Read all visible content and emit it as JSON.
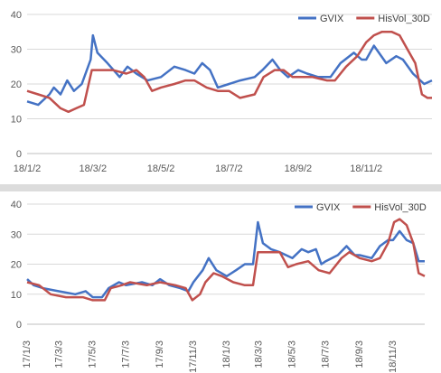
{
  "chart_data": [
    {
      "type": "line",
      "title": "",
      "xlabel": "",
      "ylabel": "",
      "ylim": [
        0,
        40
      ],
      "yticks": [
        0,
        10,
        20,
        30,
        40
      ],
      "grid": "horizontal",
      "legend": "top-right",
      "xlim": [
        "2018-01-02",
        "2018-12-31"
      ],
      "xtick_labels": [
        "18/1/2",
        "18/3/2",
        "18/5/2",
        "18/7/2",
        "18/9/2",
        "18/11/2"
      ],
      "xtick_dates": [
        "2018-01-02",
        "2018-03-02",
        "2018-05-02",
        "2018-07-02",
        "2018-09-02",
        "2018-11-02"
      ],
      "series": [
        {
          "name": "GVIX",
          "color": "#4472c4",
          "points": [
            [
              "2018-01-02",
              15
            ],
            [
              "2018-01-12",
              14
            ],
            [
              "2018-01-22",
              17
            ],
            [
              "2018-01-26",
              19
            ],
            [
              "2018-02-01",
              17
            ],
            [
              "2018-02-07",
              21
            ],
            [
              "2018-02-13",
              18
            ],
            [
              "2018-02-20",
              20
            ],
            [
              "2018-02-28",
              27
            ],
            [
              "2018-03-02",
              34
            ],
            [
              "2018-03-06",
              29
            ],
            [
              "2018-03-15",
              26
            ],
            [
              "2018-03-26",
              22
            ],
            [
              "2018-04-02",
              25
            ],
            [
              "2018-04-10",
              23
            ],
            [
              "2018-04-20",
              21
            ],
            [
              "2018-05-02",
              22
            ],
            [
              "2018-05-14",
              25
            ],
            [
              "2018-05-24",
              24
            ],
            [
              "2018-06-01",
              23
            ],
            [
              "2018-06-08",
              26
            ],
            [
              "2018-06-15",
              24
            ],
            [
              "2018-06-22",
              19
            ],
            [
              "2018-07-02",
              20
            ],
            [
              "2018-07-12",
              21
            ],
            [
              "2018-07-25",
              22
            ],
            [
              "2018-08-01",
              24
            ],
            [
              "2018-08-10",
              27
            ],
            [
              "2018-08-17",
              24
            ],
            [
              "2018-08-24",
              22
            ],
            [
              "2018-09-02",
              24
            ],
            [
              "2018-09-10",
              23
            ],
            [
              "2018-09-20",
              22
            ],
            [
              "2018-10-01",
              22
            ],
            [
              "2018-10-10",
              26
            ],
            [
              "2018-10-22",
              29
            ],
            [
              "2018-10-29",
              27
            ],
            [
              "2018-11-02",
              27
            ],
            [
              "2018-11-09",
              31
            ],
            [
              "2018-11-20",
              26
            ],
            [
              "2018-11-29",
              28
            ],
            [
              "2018-12-05",
              27
            ],
            [
              "2018-12-14",
              23
            ],
            [
              "2018-12-24",
              20
            ],
            [
              "2018-12-31",
              21
            ]
          ]
        },
        {
          "name": "HisVol_30D",
          "color": "#c0504d",
          "points": [
            [
              "2018-01-02",
              18
            ],
            [
              "2018-01-12",
              17
            ],
            [
              "2018-01-22",
              16
            ],
            [
              "2018-02-01",
              13
            ],
            [
              "2018-02-08",
              12
            ],
            [
              "2018-02-15",
              13
            ],
            [
              "2018-02-22",
              14
            ],
            [
              "2018-03-01",
              24
            ],
            [
              "2018-03-10",
              24
            ],
            [
              "2018-03-20",
              24
            ],
            [
              "2018-04-01",
              23
            ],
            [
              "2018-04-10",
              24
            ],
            [
              "2018-04-17",
              22
            ],
            [
              "2018-04-24",
              18
            ],
            [
              "2018-05-02",
              19
            ],
            [
              "2018-05-14",
              20
            ],
            [
              "2018-05-24",
              21
            ],
            [
              "2018-06-01",
              21
            ],
            [
              "2018-06-12",
              19
            ],
            [
              "2018-06-22",
              18
            ],
            [
              "2018-07-02",
              18
            ],
            [
              "2018-07-12",
              16
            ],
            [
              "2018-07-25",
              17
            ],
            [
              "2018-08-02",
              22
            ],
            [
              "2018-08-12",
              24
            ],
            [
              "2018-08-20",
              24
            ],
            [
              "2018-08-28",
              22
            ],
            [
              "2018-09-02",
              22
            ],
            [
              "2018-09-15",
              22
            ],
            [
              "2018-09-28",
              21
            ],
            [
              "2018-10-05",
              21
            ],
            [
              "2018-10-15",
              25
            ],
            [
              "2018-10-25",
              28
            ],
            [
              "2018-11-02",
              32
            ],
            [
              "2018-11-09",
              34
            ],
            [
              "2018-11-16",
              35
            ],
            [
              "2018-11-25",
              35
            ],
            [
              "2018-12-02",
              34
            ],
            [
              "2018-12-09",
              30
            ],
            [
              "2018-12-16",
              26
            ],
            [
              "2018-12-22",
              17
            ],
            [
              "2018-12-27",
              16
            ],
            [
              "2018-12-31",
              16
            ]
          ]
        }
      ]
    },
    {
      "type": "line",
      "title": "",
      "xlabel": "",
      "ylabel": "",
      "ylim": [
        0,
        40
      ],
      "yticks": [
        0,
        10,
        20,
        30,
        40
      ],
      "grid": "horizontal",
      "legend": "top-right",
      "xlim": [
        "2017-01-03",
        "2018-12-31"
      ],
      "xtick_labels": [
        "17/1/3",
        "17/3/3",
        "17/5/3",
        "17/7/3",
        "17/9/3",
        "17/11/3",
        "18/1/3",
        "18/3/3",
        "18/5/3",
        "18/7/3",
        "18/9/3",
        "18/11/3"
      ],
      "xtick_dates": [
        "2017-01-03",
        "2017-03-03",
        "2017-05-03",
        "2017-07-03",
        "2017-09-03",
        "2017-11-03",
        "2018-01-03",
        "2018-03-03",
        "2018-05-03",
        "2018-07-03",
        "2018-09-03",
        "2018-11-03"
      ],
      "series": [
        {
          "name": "GVIX",
          "color": "#4472c4",
          "points": [
            [
              "2017-01-03",
              15
            ],
            [
              "2017-01-15",
              13
            ],
            [
              "2017-02-01",
              12
            ],
            [
              "2017-03-01",
              11
            ],
            [
              "2017-04-01",
              10
            ],
            [
              "2017-04-20",
              11
            ],
            [
              "2017-05-03",
              9
            ],
            [
              "2017-05-20",
              9
            ],
            [
              "2017-06-01",
              12
            ],
            [
              "2017-06-20",
              14
            ],
            [
              "2017-07-03",
              13
            ],
            [
              "2017-08-01",
              14
            ],
            [
              "2017-08-20",
              13
            ],
            [
              "2017-09-03",
              15
            ],
            [
              "2017-09-20",
              13
            ],
            [
              "2017-10-10",
              12
            ],
            [
              "2017-10-25",
              11
            ],
            [
              "2017-11-03",
              14
            ],
            [
              "2017-11-20",
              18
            ],
            [
              "2017-12-01",
              22
            ],
            [
              "2017-12-15",
              18
            ],
            [
              "2018-01-03",
              16
            ],
            [
              "2018-01-20",
              18
            ],
            [
              "2018-02-05",
              20
            ],
            [
              "2018-02-20",
              20
            ],
            [
              "2018-03-01",
              34
            ],
            [
              "2018-03-10",
              27
            ],
            [
              "2018-03-25",
              25
            ],
            [
              "2018-04-10",
              24
            ],
            [
              "2018-05-03",
              22
            ],
            [
              "2018-05-20",
              25
            ],
            [
              "2018-06-01",
              24
            ],
            [
              "2018-06-15",
              25
            ],
            [
              "2018-06-25",
              20
            ],
            [
              "2018-07-03",
              21
            ],
            [
              "2018-07-25",
              23
            ],
            [
              "2018-08-10",
              26
            ],
            [
              "2018-08-25",
              23
            ],
            [
              "2018-09-03",
              23
            ],
            [
              "2018-09-25",
              22
            ],
            [
              "2018-10-10",
              26
            ],
            [
              "2018-10-25",
              28
            ],
            [
              "2018-11-03",
              28
            ],
            [
              "2018-11-15",
              31
            ],
            [
              "2018-11-28",
              28
            ],
            [
              "2018-12-10",
              27
            ],
            [
              "2018-12-20",
              21
            ],
            [
              "2018-12-31",
              21
            ]
          ]
        },
        {
          "name": "HisVol_30D",
          "color": "#c0504d",
          "points": [
            [
              "2017-01-03",
              14
            ],
            [
              "2017-01-25",
              13
            ],
            [
              "2017-02-15",
              10
            ],
            [
              "2017-03-15",
              9
            ],
            [
              "2017-04-15",
              9
            ],
            [
              "2017-05-03",
              8
            ],
            [
              "2017-05-25",
              8
            ],
            [
              "2017-06-05",
              12
            ],
            [
              "2017-06-25",
              13
            ],
            [
              "2017-07-10",
              14
            ],
            [
              "2017-08-10",
              13
            ],
            [
              "2017-09-03",
              14
            ],
            [
              "2017-10-01",
              13
            ],
            [
              "2017-10-20",
              12
            ],
            [
              "2017-11-01",
              8
            ],
            [
              "2017-11-15",
              10
            ],
            [
              "2017-11-25",
              14
            ],
            [
              "2017-12-10",
              17
            ],
            [
              "2017-12-25",
              16
            ],
            [
              "2018-01-15",
              14
            ],
            [
              "2018-02-05",
              13
            ],
            [
              "2018-02-20",
              13
            ],
            [
              "2018-03-01",
              24
            ],
            [
              "2018-03-15",
              24
            ],
            [
              "2018-04-10",
              24
            ],
            [
              "2018-04-25",
              19
            ],
            [
              "2018-05-10",
              20
            ],
            [
              "2018-06-01",
              21
            ],
            [
              "2018-06-20",
              18
            ],
            [
              "2018-07-10",
              17
            ],
            [
              "2018-08-01",
              22
            ],
            [
              "2018-08-15",
              24
            ],
            [
              "2018-09-03",
              22
            ],
            [
              "2018-09-25",
              21
            ],
            [
              "2018-10-10",
              22
            ],
            [
              "2018-10-25",
              27
            ],
            [
              "2018-11-05",
              34
            ],
            [
              "2018-11-15",
              35
            ],
            [
              "2018-11-28",
              33
            ],
            [
              "2018-12-10",
              27
            ],
            [
              "2018-12-20",
              17
            ],
            [
              "2018-12-31",
              16
            ]
          ]
        }
      ]
    }
  ]
}
